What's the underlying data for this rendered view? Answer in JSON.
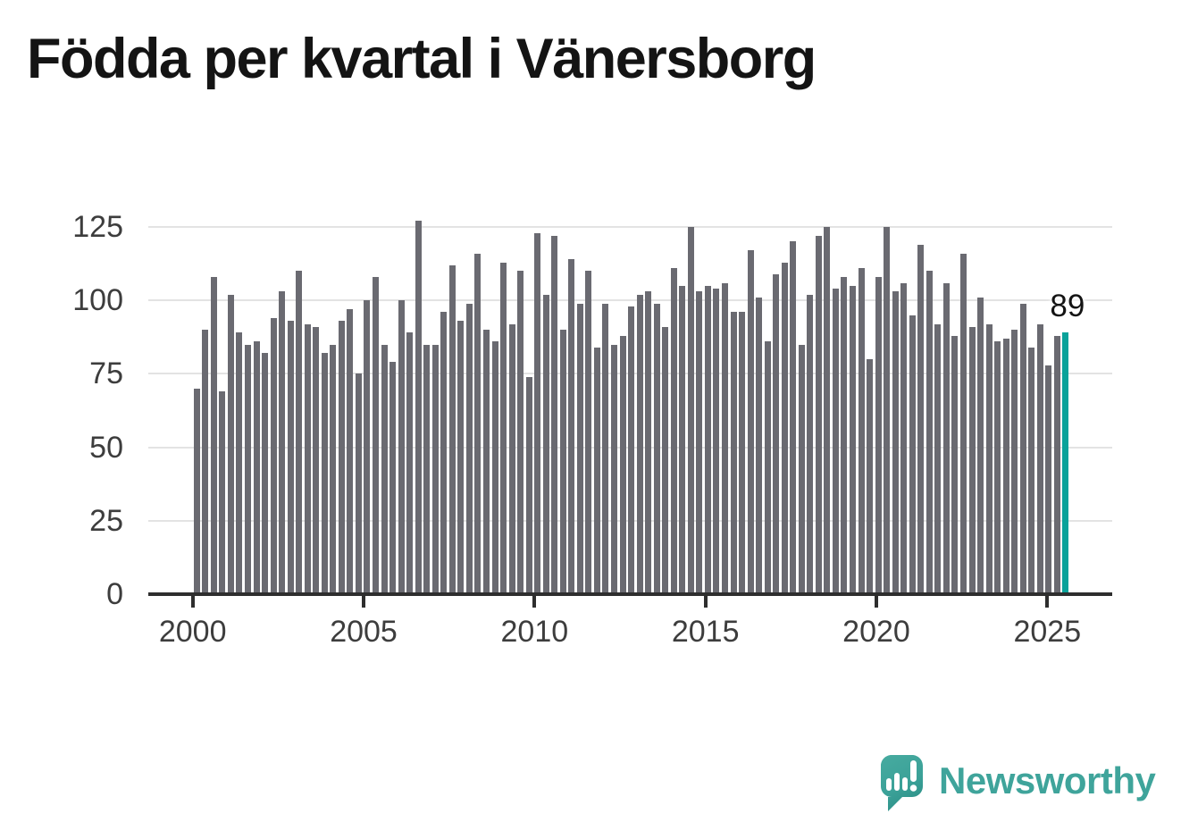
{
  "title": "Födda per kvartal i Vänersborg",
  "chart_data": {
    "type": "bar",
    "title": "Födda per kvartal i Vänersborg",
    "xlabel": "",
    "ylabel": "",
    "x_unit": "quarter",
    "start_period": "2000Q1",
    "end_period": "2025Q3",
    "grid": true,
    "ylim": [
      0,
      130
    ],
    "y_ticks": [
      0,
      25,
      50,
      75,
      100,
      125
    ],
    "x_tick_years": [
      2000,
      2005,
      2010,
      2015,
      2020,
      2025
    ],
    "categories": [
      "2000Q1",
      "2000Q2",
      "2000Q3",
      "2000Q4",
      "2001Q1",
      "2001Q2",
      "2001Q3",
      "2001Q4",
      "2002Q1",
      "2002Q2",
      "2002Q3",
      "2002Q4",
      "2003Q1",
      "2003Q2",
      "2003Q3",
      "2003Q4",
      "2004Q1",
      "2004Q2",
      "2004Q3",
      "2004Q4",
      "2005Q1",
      "2005Q2",
      "2005Q3",
      "2005Q4",
      "2006Q1",
      "2006Q2",
      "2006Q3",
      "2006Q4",
      "2007Q1",
      "2007Q2",
      "2007Q3",
      "2007Q4",
      "2008Q1",
      "2008Q2",
      "2008Q3",
      "2008Q4",
      "2009Q1",
      "2009Q2",
      "2009Q3",
      "2009Q4",
      "2010Q1",
      "2010Q2",
      "2010Q3",
      "2010Q4",
      "2011Q1",
      "2011Q2",
      "2011Q3",
      "2011Q4",
      "2012Q1",
      "2012Q2",
      "2012Q3",
      "2012Q4",
      "2013Q1",
      "2013Q2",
      "2013Q3",
      "2013Q4",
      "2014Q1",
      "2014Q2",
      "2014Q3",
      "2014Q4",
      "2015Q1",
      "2015Q2",
      "2015Q3",
      "2015Q4",
      "2016Q1",
      "2016Q2",
      "2016Q3",
      "2016Q4",
      "2017Q1",
      "2017Q2",
      "2017Q3",
      "2017Q4",
      "2018Q1",
      "2018Q2",
      "2018Q3",
      "2018Q4",
      "2019Q1",
      "2019Q2",
      "2019Q3",
      "2019Q4",
      "2020Q1",
      "2020Q2",
      "2020Q3",
      "2020Q4",
      "2021Q1",
      "2021Q2",
      "2021Q3",
      "2021Q4",
      "2022Q1",
      "2022Q2",
      "2022Q3",
      "2022Q4",
      "2023Q1",
      "2023Q2",
      "2023Q3",
      "2023Q4",
      "2024Q1",
      "2024Q2",
      "2024Q3",
      "2024Q4",
      "2025Q1",
      "2025Q2",
      "2025Q3"
    ],
    "values": [
      70,
      90,
      108,
      69,
      102,
      89,
      85,
      86,
      82,
      94,
      103,
      93,
      110,
      92,
      91,
      82,
      85,
      93,
      97,
      75,
      100,
      108,
      85,
      79,
      100,
      89,
      127,
      85,
      85,
      96,
      112,
      93,
      99,
      116,
      90,
      86,
      113,
      92,
      110,
      74,
      123,
      102,
      122,
      90,
      114,
      99,
      110,
      84,
      99,
      85,
      88,
      98,
      102,
      103,
      99,
      91,
      111,
      105,
      125,
      103,
      105,
      104,
      106,
      96,
      96,
      117,
      101,
      86,
      109,
      113,
      120,
      85,
      102,
      122,
      125,
      104,
      108,
      105,
      111,
      80,
      108,
      125,
      103,
      106,
      95,
      119,
      110,
      92,
      106,
      88,
      116,
      91,
      101,
      92,
      86,
      87,
      90,
      99,
      84,
      92,
      78,
      88,
      89
    ],
    "highlight": {
      "index": 102,
      "period": "2025Q3",
      "value": 89,
      "label": "89"
    },
    "colors": {
      "bar": "#6A6A71",
      "highlight": "#0AA29A",
      "grid": "#E3E3E3",
      "axis": "#2E2E2E",
      "label": "#3D3D3D"
    }
  },
  "branding": {
    "name": "Newsworthy",
    "color": "#3FA49B",
    "logo_icon": "newsworthy-speech-bubble-bar-chart-icon"
  }
}
